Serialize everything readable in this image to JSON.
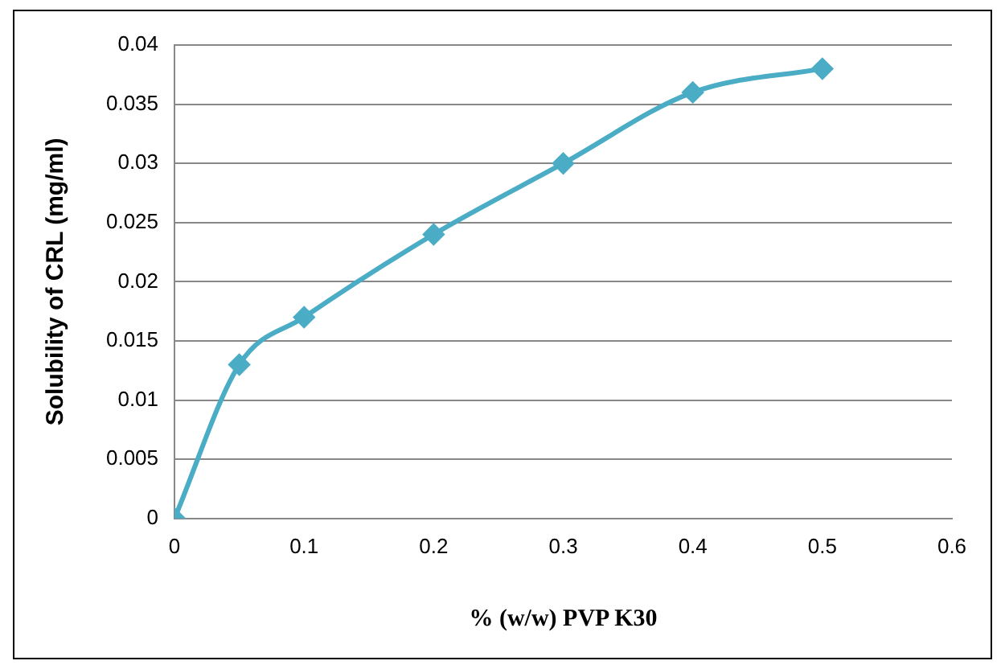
{
  "chart_data": {
    "type": "line",
    "xlabel": "% (w/w) PVP K30",
    "ylabel": "Solubility of CRL (mg/ml)",
    "x": [
      0,
      0.05,
      0.1,
      0.2,
      0.3,
      0.4,
      0.5
    ],
    "series": [
      {
        "color": "#4bacc6",
        "values": [
          0,
          0.013,
          0.017,
          0.024,
          0.03,
          0.036,
          0.038
        ]
      }
    ],
    "xlim": [
      0,
      0.6
    ],
    "xticks": [
      0,
      0.1,
      0.2,
      0.3,
      0.4,
      0.5,
      0.6
    ],
    "ylim": [
      0,
      0.04
    ],
    "yticks": [
      0,
      0.005,
      0.01,
      0.015,
      0.02,
      0.025,
      0.03,
      0.035,
      0.04
    ],
    "grid": "y",
    "marker": "diamond",
    "line_style": "solid",
    "legend": false
  }
}
